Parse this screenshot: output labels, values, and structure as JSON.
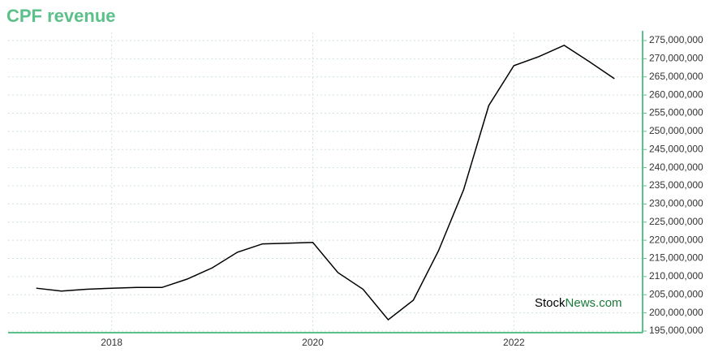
{
  "chart_data": {
    "type": "line",
    "title": "CPF revenue",
    "x": [
      2017.25,
      2017.5,
      2017.75,
      2018.0,
      2018.25,
      2018.5,
      2018.75,
      2019.0,
      2019.25,
      2019.5,
      2019.75,
      2020.0,
      2020.25,
      2020.5,
      2020.75,
      2021.0,
      2021.25,
      2021.5,
      2021.75,
      2022.0,
      2022.25,
      2022.5,
      2022.75,
      2023.0
    ],
    "series": [
      {
        "color": "#000000",
        "values": [
          206800000,
          206000000,
          206500000,
          206800000,
          207000000,
          207000000,
          209300000,
          212400000,
          216700000,
          219000000,
          219200000,
          219400000,
          211100000,
          206500000,
          198100000,
          203500000,
          217100000,
          233900000,
          257100000,
          268100000,
          270600000,
          273700000,
          269200000,
          264500000
        ]
      }
    ],
    "xlim": [
      2016.97,
      2023.28
    ],
    "xticks": [
      2018,
      2020,
      2022
    ],
    "ylim": [
      195000000,
      275000000
    ],
    "yticks": [
      {
        "value": 195000000,
        "label": "195,000,000"
      },
      {
        "value": 200000000,
        "label": "200,000,000"
      },
      {
        "value": 205000000,
        "label": "205,000,000"
      },
      {
        "value": 210000000,
        "label": "210,000,000"
      },
      {
        "value": 215000000,
        "label": "215,000,000"
      },
      {
        "value": 220000000,
        "label": "220,000,000"
      },
      {
        "value": 225000000,
        "label": "225,000,000"
      },
      {
        "value": 230000000,
        "label": "230,000,000"
      },
      {
        "value": 235000000,
        "label": "235,000,000"
      },
      {
        "value": 240000000,
        "label": "240,000,000"
      },
      {
        "value": 245000000,
        "label": "245,000,000"
      },
      {
        "value": 250000000,
        "label": "250,000,000"
      },
      {
        "value": 255000000,
        "label": "255,000,000"
      },
      {
        "value": 260000000,
        "label": "260,000,000"
      },
      {
        "value": 265000000,
        "label": "265,000,000"
      },
      {
        "value": 270000000,
        "label": "270,000,000"
      },
      {
        "value": 275000000,
        "label": "275,000,000"
      }
    ],
    "grid": true,
    "axis_color": "#5cc08a",
    "watermark": [
      "Stock",
      "News.com"
    ]
  }
}
